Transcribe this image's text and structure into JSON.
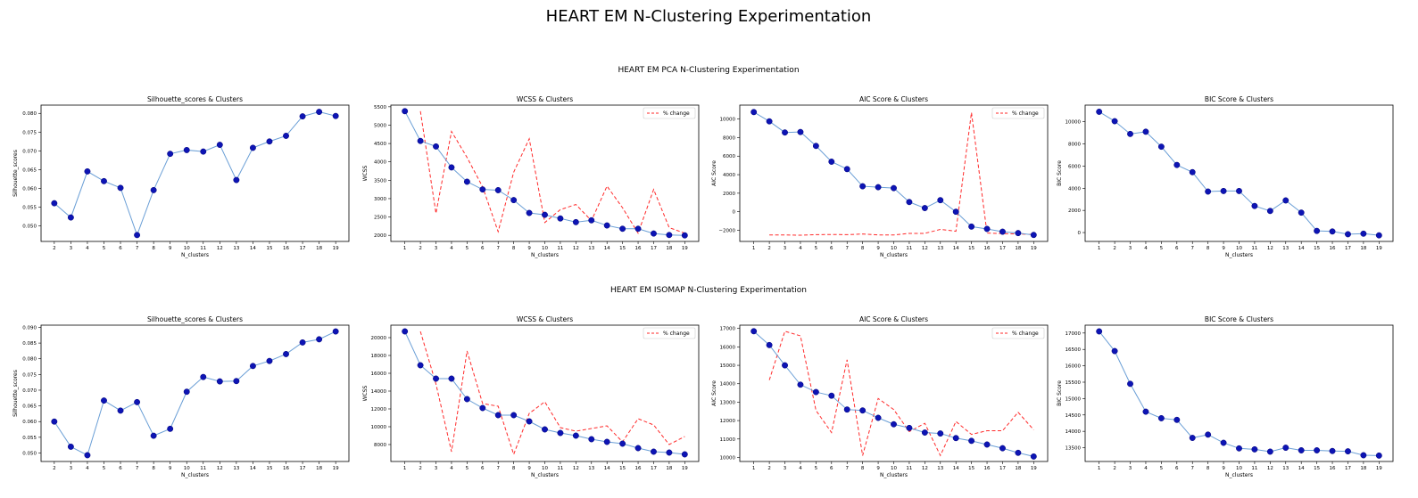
{
  "figure": {
    "title": "HEART EM N-Clustering Experimentation",
    "colors": {
      "line": "#6b9fd6",
      "marker": "#0d14b4",
      "marker_edge": "#00007a",
      "pct": "#ff2a2a"
    }
  },
  "rows": [
    {
      "title": "HEART EM PCA N-Clustering Experimentation",
      "chart_data": [
        {
          "type": "line",
          "title": "Silhouette_scores & Clusters",
          "xlabel": "N_clusters",
          "ylabel": "Silhouette_scores",
          "x": [
            2,
            3,
            4,
            5,
            6,
            7,
            8,
            9,
            10,
            11,
            12,
            13,
            14,
            15,
            16,
            17,
            18,
            19
          ],
          "series": [
            {
              "values": [
                0.056,
                0.0522,
                0.0645,
                0.0619,
                0.0601,
                0.0475,
                0.0595,
                0.0692,
                0.0702,
                0.0698,
                0.0716,
                0.0622,
                0.0708,
                0.0725,
                0.074,
                0.0792,
                0.0804,
                0.0793
              ]
            }
          ],
          "xlim": [
            1.2,
            19.8
          ],
          "ylim": [
            0.0458,
            0.0822
          ],
          "yticks": [
            0.05,
            0.055,
            0.06,
            0.065,
            0.07,
            0.075,
            0.08
          ],
          "ytick_labels": [
            "0.050",
            "0.055",
            "0.060",
            "0.065",
            "0.070",
            "0.075",
            "0.080"
          ]
        },
        {
          "type": "line",
          "title": "WCSS & Clusters",
          "xlabel": "N_clusters",
          "ylabel": "WCSS",
          "x": [
            1,
            2,
            3,
            4,
            5,
            6,
            7,
            8,
            9,
            10,
            11,
            12,
            13,
            14,
            15,
            16,
            17,
            18,
            19
          ],
          "series": [
            {
              "values": [
                5380,
                4570,
                4420,
                3850,
                3460,
                3250,
                3230,
                2960,
                2610,
                2560,
                2460,
                2360,
                2410,
                2270,
                2180,
                2180,
                2050,
                2010,
                2000
              ]
            }
          ],
          "pct_change": {
            "x": [
              2,
              3,
              4,
              5,
              6,
              7,
              8,
              9,
              10,
              11,
              12,
              13,
              14,
              15,
              16,
              17,
              18,
              19
            ],
            "values": [
              5380,
              2600,
              4830,
              4120,
              3320,
              2100,
              3720,
              4630,
              2350,
              2700,
              2840,
              2400,
              3340,
              2750,
              2060,
              3250,
              2210,
              2060
            ]
          },
          "legend": {
            "label": "% change",
            "position": "upper right"
          },
          "xlim": [
            0.1,
            19.9
          ],
          "ylim": [
            1835,
            5545
          ],
          "yticks": [
            2000,
            2500,
            3000,
            3500,
            4000,
            4500,
            5000,
            5500
          ],
          "ytick_labels": [
            "2000",
            "2500",
            "3000",
            "3500",
            "4000",
            "4500",
            "5000",
            "5500"
          ]
        },
        {
          "type": "line",
          "title": "AIC Score & Clusters",
          "xlabel": "N_clusters",
          "ylabel": "AIC Score",
          "x": [
            1,
            2,
            3,
            4,
            5,
            6,
            7,
            8,
            9,
            10,
            11,
            12,
            13,
            14,
            15,
            16,
            17,
            18,
            19
          ],
          "series": [
            {
              "values": [
                10750,
                9750,
                8550,
                8600,
                7100,
                5400,
                4600,
                2750,
                2650,
                2550,
                1050,
                400,
                1250,
                0,
                -1600,
                -1850,
                -2150,
                -2300,
                -2500
              ]
            }
          ],
          "pct_change": {
            "x": [
              2,
              3,
              4,
              5,
              6,
              7,
              8,
              9,
              10,
              11,
              12,
              13,
              14,
              15,
              16,
              17,
              18,
              19
            ],
            "values": [
              -2500,
              -2500,
              -2530,
              -2470,
              -2450,
              -2470,
              -2400,
              -2500,
              -2500,
              -2330,
              -2330,
              -1900,
              -2100,
              10700,
              -2300,
              -2350,
              -2400,
              -2450
            ]
          },
          "legend": {
            "label": "% change",
            "position": "upper right"
          },
          "xlim": [
            0.1,
            19.9
          ],
          "ylim": [
            -3200,
            11500
          ],
          "yticks": [
            -2000,
            0,
            2000,
            4000,
            6000,
            8000,
            10000
          ],
          "ytick_labels": [
            "−2000",
            "0",
            "2000",
            "4000",
            "6000",
            "8000",
            "10000"
          ]
        },
        {
          "type": "line",
          "title": "BIC Score & Clusters",
          "xlabel": "N_clusters",
          "ylabel": "BIC Score",
          "x": [
            1,
            2,
            3,
            4,
            5,
            6,
            7,
            8,
            9,
            10,
            11,
            12,
            13,
            14,
            15,
            16,
            17,
            18,
            19
          ],
          "series": [
            {
              "values": [
                10900,
                10050,
                8900,
                9100,
                7750,
                6100,
                5450,
                3700,
                3750,
                3750,
                2400,
                1950,
                2900,
                1800,
                150,
                100,
                -150,
                -100,
                -250
              ]
            }
          ],
          "xlim": [
            0.1,
            19.9
          ],
          "ylim": [
            -800,
            11500
          ],
          "yticks": [
            0,
            2000,
            4000,
            6000,
            8000,
            10000
          ],
          "ytick_labels": [
            "0",
            "2000",
            "4000",
            "6000",
            "8000",
            "10000"
          ]
        }
      ]
    },
    {
      "title": "HEART EM ISOMAP N-Clustering Experimentation",
      "chart_data": [
        {
          "type": "line",
          "title": "Silhouette_scores & Clusters",
          "xlabel": "N_clusters",
          "ylabel": "Silhouette_scores",
          "x": [
            2,
            3,
            4,
            5,
            6,
            7,
            8,
            9,
            10,
            11,
            12,
            13,
            14,
            15,
            16,
            17,
            18,
            19
          ],
          "series": [
            {
              "values": [
                0.06,
                0.052,
                0.0493,
                0.0667,
                0.0635,
                0.0662,
                0.0555,
                0.0577,
                0.0695,
                0.0742,
                0.0728,
                0.0729,
                0.0777,
                0.0793,
                0.0815,
                0.0852,
                0.0862,
                0.0887
              ]
            }
          ],
          "xlim": [
            1.2,
            19.8
          ],
          "ylim": [
            0.0473,
            0.0907
          ],
          "yticks": [
            0.05,
            0.055,
            0.06,
            0.065,
            0.07,
            0.075,
            0.08,
            0.085,
            0.09
          ],
          "ytick_labels": [
            "0.050",
            "0.055",
            "0.060",
            "0.065",
            "0.070",
            "0.075",
            "0.080",
            "0.085",
            "0.090"
          ]
        },
        {
          "type": "line",
          "title": "WCSS & Clusters",
          "xlabel": "N_clusters",
          "ylabel": "WCSS",
          "x": [
            1,
            2,
            3,
            4,
            5,
            6,
            7,
            8,
            9,
            10,
            11,
            12,
            13,
            14,
            15,
            16,
            17,
            18,
            19
          ],
          "series": [
            {
              "values": [
                20700,
                16900,
                15400,
                15400,
                13100,
                12100,
                11300,
                11300,
                10600,
                9700,
                9300,
                9000,
                8600,
                8300,
                8100,
                7600,
                7200,
                7100,
                6900
              ]
            }
          ],
          "pct_change": {
            "x": [
              2,
              3,
              4,
              5,
              6,
              7,
              8,
              9,
              10,
              11,
              12,
              13,
              14,
              15,
              16,
              17,
              18,
              19
            ],
            "values": [
              20700,
              14800,
              7200,
              18500,
              12600,
              12300,
              6900,
              11500,
              12800,
              9900,
              9500,
              9800,
              10100,
              8300,
              10900,
              10200,
              8000,
              8900
            ]
          },
          "legend": {
            "label": "% change",
            "position": "upper right"
          },
          "xlim": [
            0.1,
            19.9
          ],
          "ylim": [
            6100,
            21400
          ],
          "yticks": [
            8000,
            10000,
            12000,
            14000,
            16000,
            18000,
            20000
          ],
          "ytick_labels": [
            "8000",
            "10000",
            "12000",
            "14000",
            "16000",
            "18000",
            "20000"
          ]
        },
        {
          "type": "line",
          "title": "AIC Score & Clusters",
          "xlabel": "N_clusters",
          "ylabel": "AIC Score",
          "x": [
            1,
            2,
            3,
            4,
            5,
            6,
            7,
            8,
            9,
            10,
            11,
            12,
            13,
            14,
            15,
            16,
            17,
            18,
            19
          ],
          "series": [
            {
              "values": [
                16850,
                16100,
                15000,
                13950,
                13550,
                13350,
                12600,
                12550,
                12150,
                11800,
                11600,
                11350,
                11300,
                11050,
                10900,
                10700,
                10500,
                10250,
                10050
              ]
            }
          ],
          "pct_change": {
            "x": [
              2,
              3,
              4,
              5,
              6,
              7,
              8,
              9,
              10,
              11,
              12,
              13,
              14,
              15,
              16,
              17,
              18,
              19
            ],
            "values": [
              14200,
              16850,
              16600,
              12550,
              11350,
              15300,
              10100,
              13200,
              12600,
              11400,
              11850,
              10100,
              11950,
              11250,
              11450,
              11450,
              12450,
              11500
            ]
          },
          "legend": {
            "label": "% change",
            "position": "upper right"
          },
          "xlim": [
            0.1,
            19.9
          ],
          "ylim": [
            9780,
            17180
          ],
          "yticks": [
            10000,
            11000,
            12000,
            13000,
            14000,
            15000,
            16000,
            17000
          ],
          "ytick_labels": [
            "10000",
            "11000",
            "12000",
            "13000",
            "14000",
            "15000",
            "16000",
            "17000"
          ]
        },
        {
          "type": "line",
          "title": "BIC Score & Clusters",
          "xlabel": "N_clusters",
          "ylabel": "BIC Score",
          "x": [
            1,
            2,
            3,
            4,
            5,
            6,
            7,
            8,
            9,
            10,
            11,
            12,
            13,
            14,
            15,
            16,
            17,
            18,
            19
          ],
          "series": [
            {
              "values": [
                17050,
                16450,
                15450,
                14600,
                14400,
                14350,
                13800,
                13900,
                13650,
                13480,
                13450,
                13380,
                13500,
                13420,
                13420,
                13400,
                13390,
                13270,
                13260
              ]
            }
          ],
          "xlim": [
            0.1,
            19.9
          ],
          "ylim": [
            13080,
            17240
          ],
          "yticks": [
            13500,
            14000,
            14500,
            15000,
            15500,
            16000,
            16500,
            17000
          ],
          "ytick_labels": [
            "13500",
            "14000",
            "14500",
            "15000",
            "15500",
            "16000",
            "16500",
            "17000"
          ]
        }
      ]
    }
  ]
}
